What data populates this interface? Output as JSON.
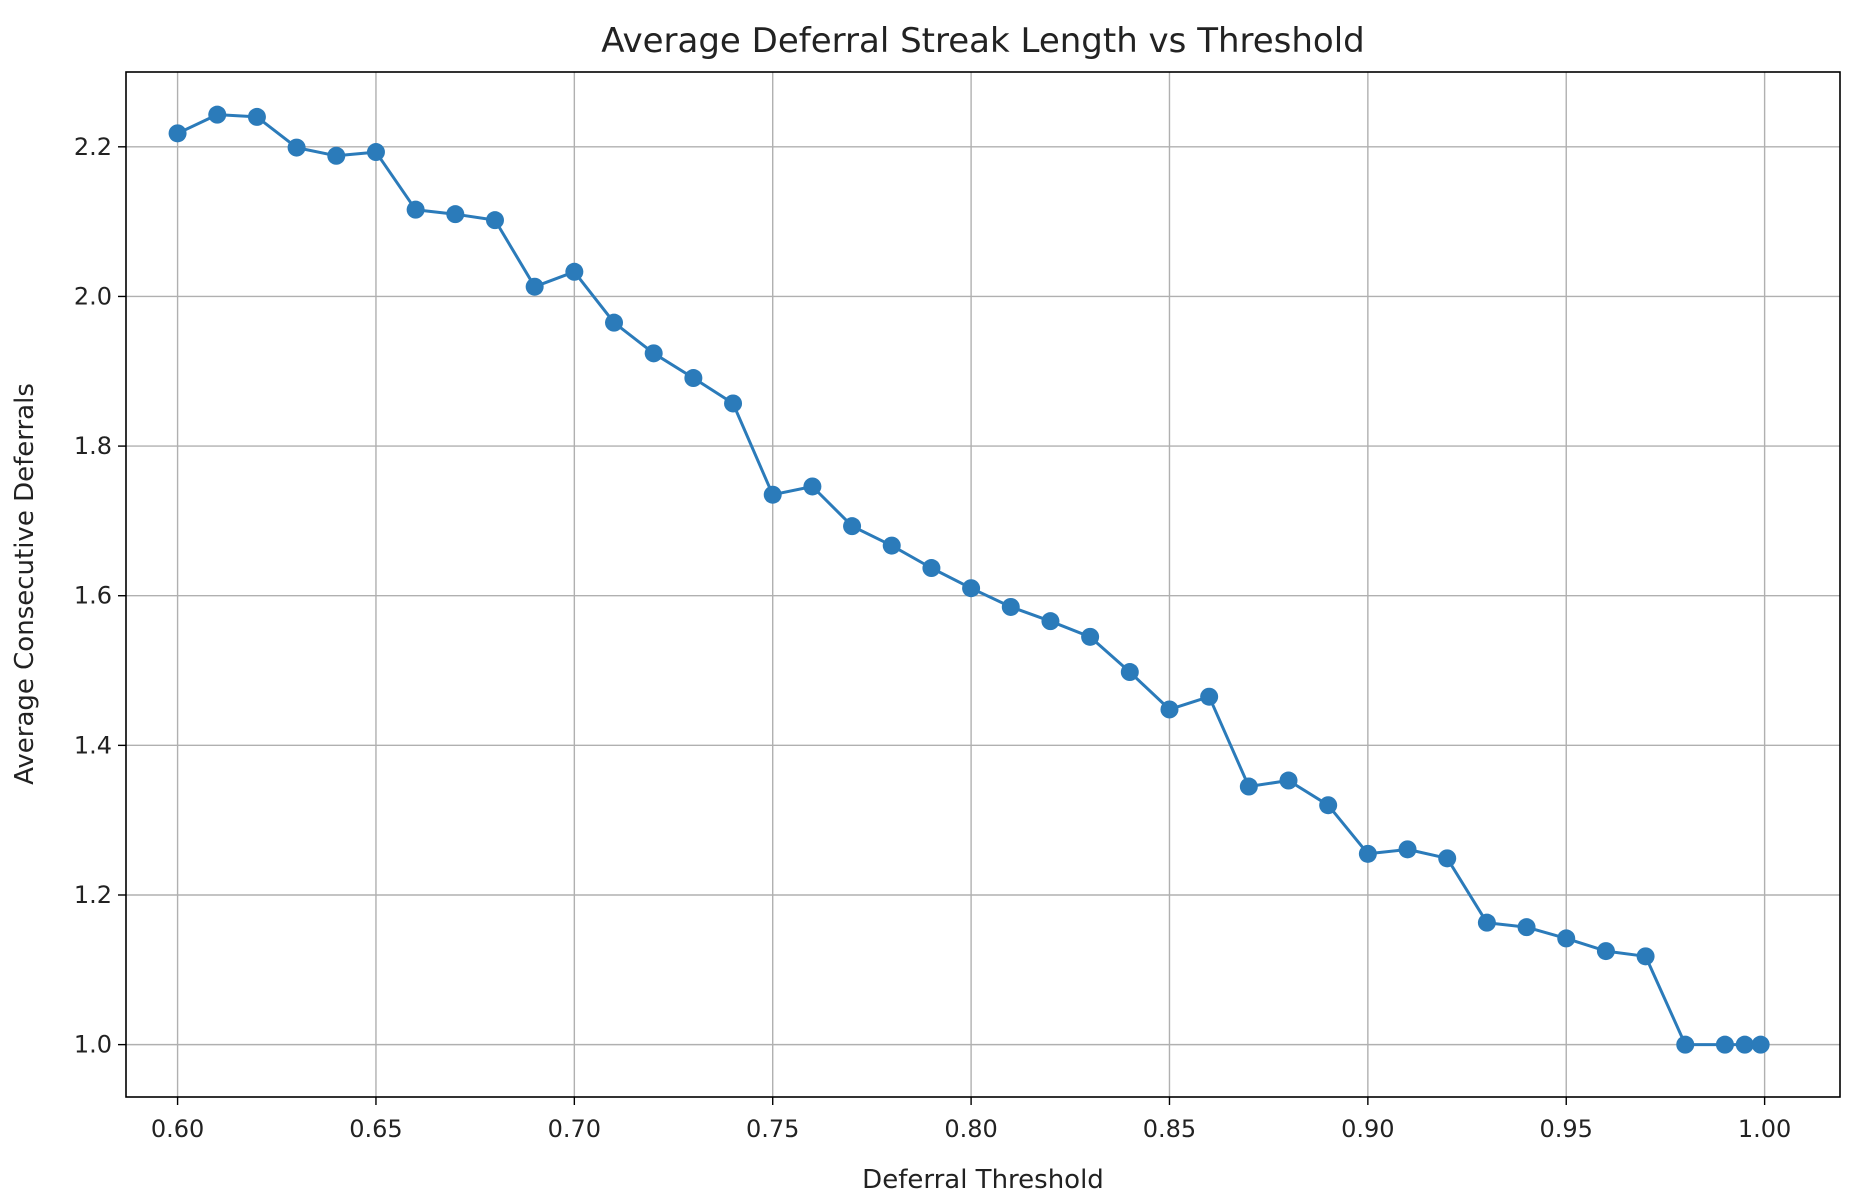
{
  "chart_data": {
    "type": "line",
    "title": "Average Deferral Streak Length vs Threshold",
    "xlabel": "Deferral Threshold",
    "ylabel": "Average Consecutive Deferrals",
    "xlim": [
      0.587,
      1.019
    ],
    "ylim": [
      0.93,
      2.3
    ],
    "xticks": [
      "0.60",
      "0.65",
      "0.70",
      "0.75",
      "0.80",
      "0.85",
      "0.90",
      "0.95",
      "1.00"
    ],
    "yticks": [
      "1.0",
      "1.2",
      "1.4",
      "1.6",
      "1.8",
      "2.0",
      "2.2"
    ],
    "grid": true,
    "line_color": "#2b7bba",
    "series": [
      {
        "x": [
          0.6,
          0.61,
          0.62,
          0.63,
          0.64,
          0.65,
          0.66,
          0.67,
          0.68,
          0.69,
          0.7,
          0.71,
          0.72,
          0.73,
          0.74,
          0.75,
          0.76,
          0.77,
          0.78,
          0.79,
          0.8,
          0.81,
          0.82,
          0.83,
          0.84,
          0.85,
          0.86,
          0.87,
          0.88,
          0.89,
          0.9,
          0.91,
          0.92,
          0.93,
          0.94,
          0.95,
          0.96,
          0.97,
          0.98,
          0.99,
          0.995,
          0.999
        ],
        "y": [
          2.218,
          2.243,
          2.24,
          2.199,
          2.188,
          2.193,
          2.116,
          2.11,
          2.102,
          2.013,
          2.033,
          1.965,
          1.924,
          1.891,
          1.857,
          1.735,
          1.746,
          1.693,
          1.667,
          1.637,
          1.61,
          1.585,
          1.566,
          1.545,
          1.498,
          1.448,
          1.465,
          1.345,
          1.353,
          1.32,
          1.255,
          1.261,
          1.249,
          1.163,
          1.157,
          1.142,
          1.125,
          1.118,
          1.0,
          1.0,
          1.0,
          1.0
        ]
      }
    ]
  }
}
